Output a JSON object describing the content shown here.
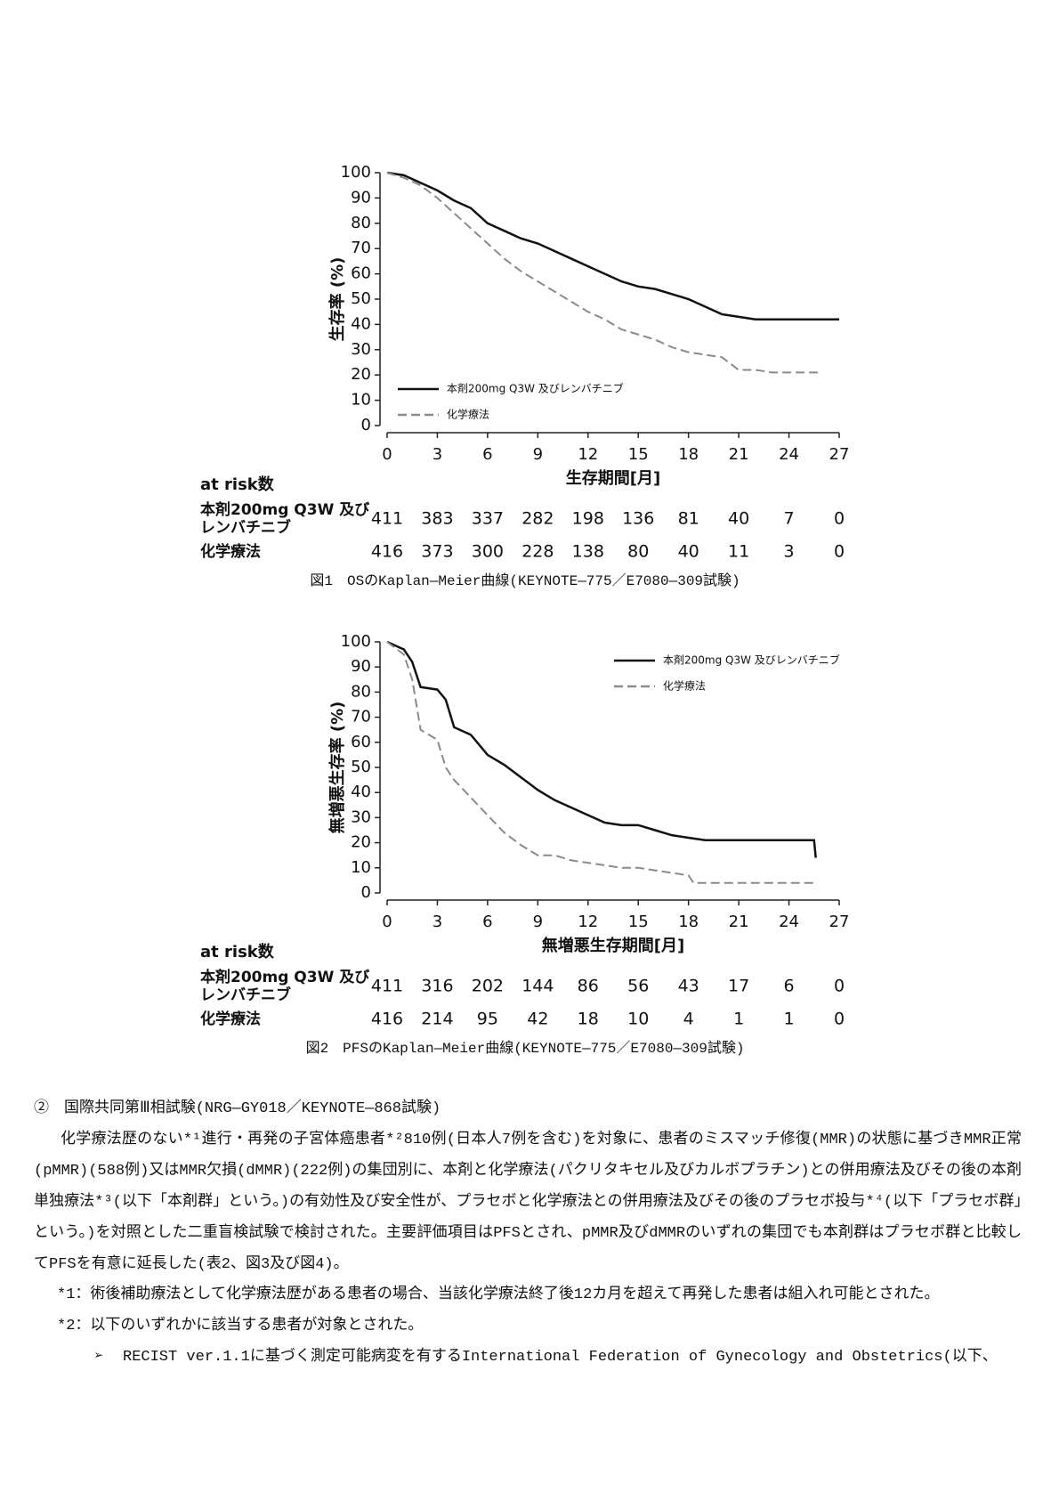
{
  "chart_data": [
    {
      "type": "line",
      "ylabel": "生存率 (%)",
      "xlabel": "生存期間[月]",
      "xlim": [
        0,
        27
      ],
      "xticks": [
        0,
        3,
        6,
        9,
        12,
        15,
        18,
        21,
        24,
        27
      ],
      "ylim": [
        0,
        100
      ],
      "yticks": [
        0,
        10,
        20,
        30,
        40,
        50,
        60,
        70,
        80,
        90,
        100
      ],
      "legend": "lower left",
      "series": [
        {
          "name": "本剤200mg Q3W 及びレンバチニブ",
          "color": "#111111",
          "line_style": "solid",
          "x": [
            0,
            1,
            2,
            3,
            4,
            5,
            6,
            7,
            8,
            9,
            10,
            11,
            12,
            13,
            14,
            15,
            16,
            17,
            18,
            19,
            20,
            21,
            22,
            23,
            24,
            25,
            26,
            27
          ],
          "values": [
            100,
            99,
            96,
            93,
            89,
            86,
            80,
            77,
            74,
            72,
            69,
            66,
            63,
            60,
            57,
            55,
            54,
            52,
            50,
            47,
            44,
            43,
            42,
            42,
            42,
            42,
            42,
            42
          ]
        },
        {
          "name": "化学療法",
          "color": "#8a8a8a",
          "line_style": "dashed",
          "x": [
            0,
            1,
            2,
            3,
            4,
            5,
            6,
            7,
            8,
            9,
            10,
            11,
            12,
            13,
            14,
            15,
            16,
            17,
            18,
            19,
            20,
            21,
            22,
            23,
            24,
            25,
            26
          ],
          "values": [
            100,
            98,
            95,
            90,
            84,
            78,
            72,
            66,
            61,
            57,
            53,
            49,
            45,
            42,
            38,
            36,
            34,
            31,
            29,
            28,
            27,
            22,
            22,
            21,
            21,
            21,
            21
          ]
        }
      ],
      "at_risk": {
        "title": "at risk数",
        "rows": [
          {
            "name_lines": [
              "本剤200mg Q3W 及び",
              "レンバチニブ"
            ],
            "values": [
              411,
              383,
              337,
              282,
              198,
              136,
              81,
              40,
              7,
              0
            ]
          },
          {
            "name_lines": [
              "化学療法"
            ],
            "values": [
              416,
              373,
              300,
              228,
              138,
              80,
              40,
              11,
              3,
              0
            ]
          }
        ]
      },
      "caption": "図1　OSのKaplan―Meier曲線(KEYNOTE―775／E7080―309試験)"
    },
    {
      "type": "line",
      "ylabel": "無増悪生存率 (%)",
      "xlabel": "無増悪生存期間[月]",
      "xlim": [
        0,
        27
      ],
      "xticks": [
        0,
        3,
        6,
        9,
        12,
        15,
        18,
        21,
        24,
        27
      ],
      "ylim": [
        0,
        100
      ],
      "yticks": [
        0,
        10,
        20,
        30,
        40,
        50,
        60,
        70,
        80,
        90,
        100
      ],
      "legend": "upper right",
      "series": [
        {
          "name": "本剤200mg Q3W 及びレンバチニブ",
          "color": "#111111",
          "line_style": "solid",
          "x": [
            0,
            1,
            1.5,
            2,
            3,
            3.5,
            4,
            5,
            6,
            7,
            8,
            9,
            10,
            11,
            12,
            13,
            14,
            15,
            16,
            17,
            18,
            19,
            20,
            21,
            22,
            23,
            24,
            25,
            25.5,
            25.6
          ],
          "values": [
            100,
            97,
            92,
            82,
            81,
            77,
            66,
            63,
            55,
            51,
            46,
            41,
            37,
            34,
            31,
            28,
            27,
            27,
            25,
            23,
            22,
            21,
            21,
            21,
            21,
            21,
            21,
            21,
            21,
            14
          ]
        },
        {
          "name": "化学療法",
          "color": "#8a8a8a",
          "line_style": "dashed",
          "x": [
            0,
            1,
            1.5,
            2,
            3,
            3.5,
            4,
            5,
            6,
            7,
            8,
            9,
            10,
            11,
            12,
            13,
            14,
            15,
            16,
            17,
            18,
            18.3,
            19,
            20,
            21,
            22,
            23,
            24,
            25,
            25.5
          ],
          "values": [
            100,
            95,
            85,
            65,
            61,
            50,
            45,
            38,
            31,
            24,
            19,
            15,
            15,
            13,
            12,
            11,
            10,
            10,
            9,
            8,
            7,
            4,
            4,
            4,
            4,
            4,
            4,
            4,
            4,
            4
          ]
        }
      ],
      "at_risk": {
        "title": "at risk数",
        "rows": [
          {
            "name_lines": [
              "本剤200mg Q3W 及び",
              "レンバチニブ"
            ],
            "values": [
              411,
              316,
              202,
              144,
              86,
              56,
              43,
              17,
              6,
              0
            ]
          },
          {
            "name_lines": [
              "化学療法"
            ],
            "values": [
              416,
              214,
              95,
              42,
              18,
              10,
              4,
              1,
              1,
              0
            ]
          }
        ]
      },
      "caption": "図2　PFSのKaplan―Meier曲線(KEYNOTE―775／E7080―309試験)"
    }
  ],
  "section": {
    "heading": "②　国際共同第Ⅲ相試験(NRG―GY018／KEYNOTE―868試験)",
    "paragraph": "化学療法歴のない*¹進行・再発の子宮体癌患者*²810例(日本人7例を含む)を対象に、患者のミスマッチ修復(MMR)の状態に基づきMMR正常(pMMR)(588例)又はMMR欠損(dMMR)(222例)の集団別に、本剤と化学療法(パクリタキセル及びカルボプラチン)との併用療法及びその後の本剤単独療法*³(以下「本剤群」という。)の有効性及び安全性が、プラセボと化学療法との併用療法及びその後のプラセボ投与*⁴(以下「プラセボ群」という。)を対照とした二重盲検試験で検討された。主要評価項目はPFSとされ、pMMR及びdMMRのいずれの集団でも本剤群はプラセボ群と比較してPFSを有意に延長した(表2、図3及び図4)。",
    "notes": [
      "*1：術後補助療法として化学療法歴がある患者の場合、当該化学療法終了後12カ月を超えて再発した患者は組入れ可能とされた。",
      "*2：以下のいずれかに該当する患者が対象とされた。"
    ],
    "bullet": "RECIST ver.1.1に基づく測定可能病変を有するInternational Federation of Gynecology and Obstetrics(以下、"
  }
}
